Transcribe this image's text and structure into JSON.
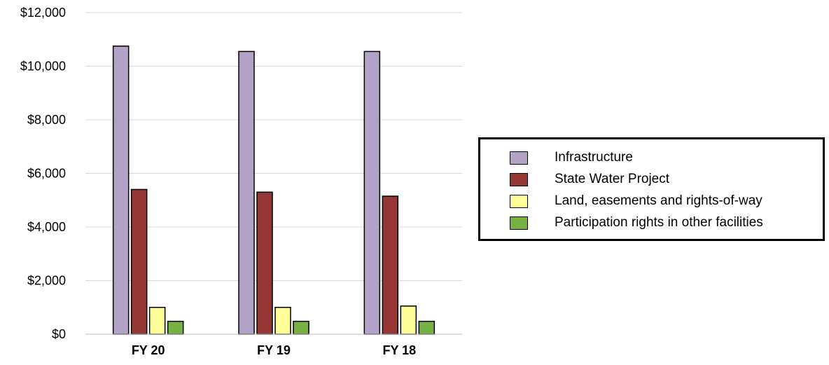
{
  "chart_data": {
    "type": "bar",
    "categories": [
      "FY 20",
      "FY 19",
      "FY 18"
    ],
    "series": [
      {
        "name": "Infrastructure",
        "color": "#b3a2c7",
        "values": [
          10750,
          10550,
          10550
        ]
      },
      {
        "name": "State Water Project",
        "color": "#953735",
        "values": [
          5400,
          5300,
          5150
        ]
      },
      {
        "name": "Land, easements and rights-of-way",
        "color": "#ffff99",
        "values": [
          1000,
          1000,
          1050
        ]
      },
      {
        "name": "Participation rights in other facilities",
        "color": "#77b144",
        "values": [
          480,
          480,
          480
        ]
      }
    ],
    "ylim": [
      0,
      12000
    ],
    "yticks": [
      "$0",
      "$2,000",
      "$4,000",
      "$6,000",
      "$8,000",
      "$10,000",
      "$12,000"
    ],
    "ytick_values": [
      0,
      2000,
      4000,
      6000,
      8000,
      10000,
      12000
    ],
    "grid": true,
    "legend_position": "right"
  }
}
